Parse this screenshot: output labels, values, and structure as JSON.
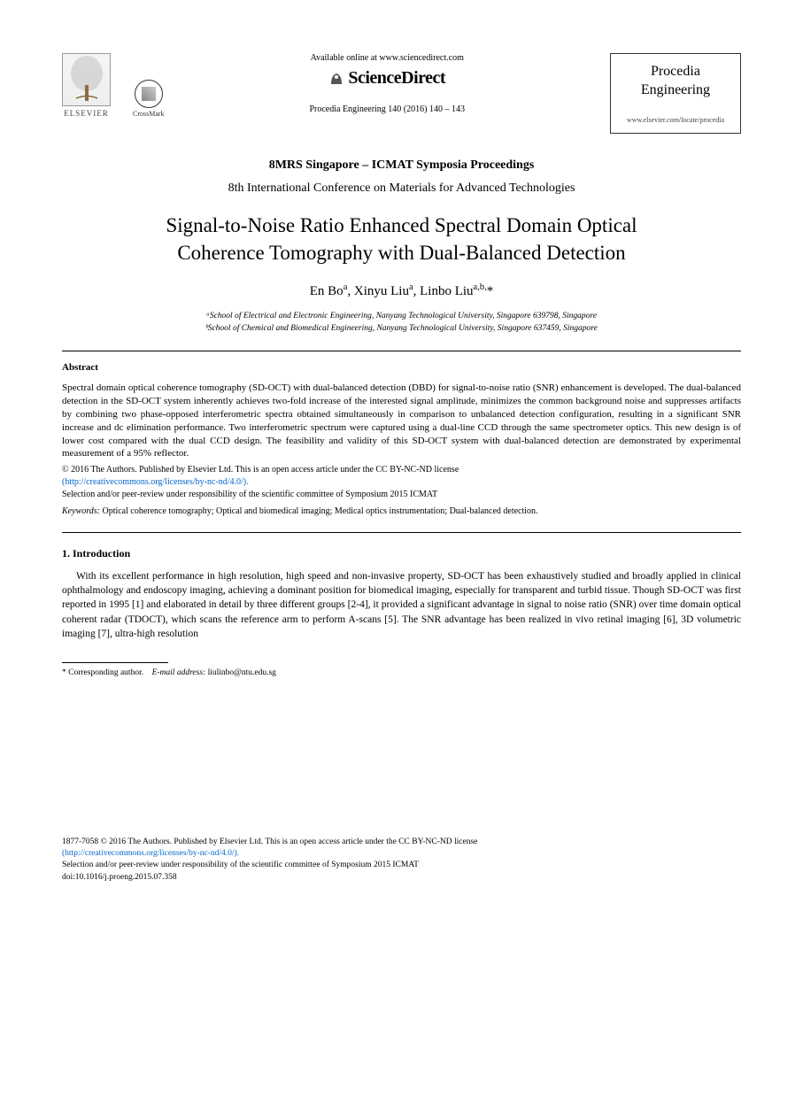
{
  "header": {
    "elsevier_label": "ELSEVIER",
    "crossmark_label": "CrossMark",
    "available_text": "Available online at www.sciencedirect.com",
    "sciencedirect": "ScienceDirect",
    "citation": "Procedia Engineering 140 (2016) 140 – 143",
    "journal_name_line1": "Procedia",
    "journal_name_line2": "Engineering",
    "journal_url": "www.elsevier.com/locate/procedia"
  },
  "proceedings": {
    "symposia": "8MRS Singapore – ICMAT Symposia Proceedings",
    "conference": "8th International Conference on Materials for Advanced Technologies"
  },
  "title_line1": "Signal-to-Noise Ratio Enhanced Spectral Domain Optical",
  "title_line2": "Coherence Tomography with Dual-Balanced Detection",
  "authors_html": "En Bo<sup>a</sup>, Xinyu Liu<sup>a</sup>, Linbo Liu<sup>a,b,</sup>*",
  "affiliations": {
    "a": "ᵃSchool of Electrical and Electronic Engineering, Nanyang Technological University, Singapore 639798, Singapore",
    "b": "ᵇSchool of Chemical and Biomedical Engineering, Nanyang Technological University, Singapore 637459, Singapore"
  },
  "abstract_label": "Abstract",
  "abstract_text": "Spectral domain optical coherence tomography (SD-OCT) with dual-balanced detection (DBD) for signal-to-noise ratio (SNR) enhancement is developed. The dual-balanced detection in the SD-OCT system inherently achieves two-fold increase of the interested signal amplitude, minimizes the common background noise and suppresses artifacts by combining two phase-opposed interferometric spectra obtained simultaneously in comparison to unbalanced detection configuration, resulting in a significant SNR increase and dc elimination performance. Two interferometric spectrum were captured using a dual-line CCD through the same spectrometer optics. This new design is of lower cost compared with the dual CCD design. The feasibility and validity of this SD-OCT system with dual-balanced detection are demonstrated by experimental measurement of a 95% reflector.",
  "copyright": {
    "line1": "© 2016 The Authors. Published by Elsevier Ltd. This is an open access article under the CC BY-NC-ND license",
    "license_url": "(http://creativecommons.org/licenses/by-nc-nd/4.0/).",
    "line2": "Selection and/or peer-review under responsibility of the scientific committee of Symposium 2015 ICMAT"
  },
  "keywords_label": "Keywords:",
  "keywords_text": "Optical coherence tomography; Optical and biomedical imaging; Medical optics instrumentation; Dual-balanced detection.",
  "intro_heading": "1. Introduction",
  "intro_text": "With its excellent performance in high resolution, high speed and non-invasive property, SD-OCT has been exhaustively studied and broadly applied in clinical ophthalmology and endoscopy imaging, achieving a dominant position for biomedical imaging, especially for transparent and turbid tissue. Though SD-OCT was first reported in 1995 [1] and elaborated in detail by three different groups [2-4], it provided a significant advantage in signal to noise ratio (SNR) over time domain optical coherent radar (TDOCT), which scans the reference arm to perform A-scans [5]. The SNR advantage has been realized in vivo retinal imaging [6], 3D volumetric imaging [7], ultra-high resolution",
  "footnote": {
    "corresponding": "* Corresponding author.",
    "email_label": "E-mail address:",
    "email": "liulinbo@ntu.edu.sg"
  },
  "footer": {
    "issn_line": "1877-7058 © 2016 The Authors. Published by Elsevier Ltd. This is an open access article under the CC BY-NC-ND license",
    "license_url": "(http://creativecommons.org/licenses/by-nc-nd/4.0/).",
    "review_line": "Selection and/or peer-review under responsibility of the scientific committee of Symposium 2015 ICMAT",
    "doi": "doi:10.1016/j.proeng.2015.07.358"
  },
  "colors": {
    "text": "#000000",
    "link": "#0066cc",
    "background": "#ffffff",
    "border": "#333333"
  },
  "fonts": {
    "body_family": "Times New Roman",
    "title_size_pt": 23,
    "body_size_pt": 11.5,
    "abstract_size_pt": 11,
    "footnote_size_pt": 9.5
  }
}
